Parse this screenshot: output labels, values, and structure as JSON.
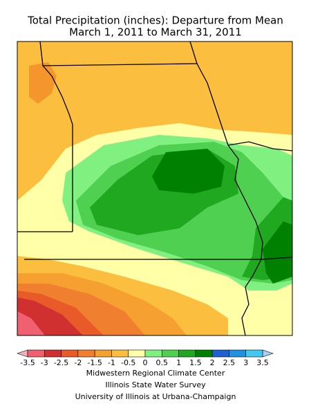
{
  "header": {
    "title": [
      "Total Precipitation (inches): Departure from Mean",
      "March 1, 2011 to March 31, 2011"
    ]
  },
  "legend": {
    "labels": [
      "-3.5",
      "-3",
      "-2.5",
      "-2",
      "-1.5",
      "-1",
      "-0.5",
      "0",
      "0.5",
      "1",
      "1.5",
      "2",
      "2.5",
      "3",
      "3.5"
    ],
    "colors": [
      "#f06070",
      "#d03030",
      "#e85a28",
      "#f08030",
      "#f5a030",
      "#fbbe3e",
      "#ffffa8",
      "#80f080",
      "#50d050",
      "#20a820",
      "#008000",
      "#2060d0",
      "#2090e0",
      "#40c8f0"
    ],
    "under_color": "#f8b0b8",
    "over_color": "#a8d0f0"
  },
  "credits": [
    "Midwestern Regional Climate Center",
    "Illinois State Water Survey",
    "University of Illinois at Urbana-Champaign"
  ]
}
